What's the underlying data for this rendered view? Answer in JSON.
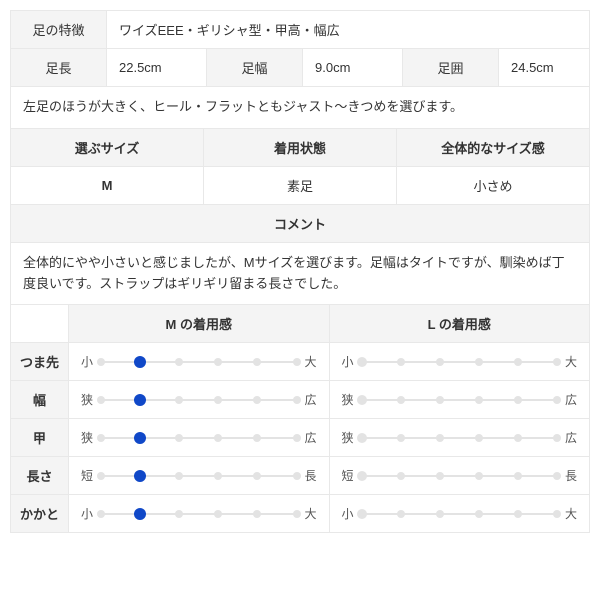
{
  "labels": {
    "foot_features": "足の特徴",
    "foot_length": "足長",
    "foot_width": "足幅",
    "foot_circ": "足囲",
    "size_choice": "選ぶサイズ",
    "wear_state": "着用状態",
    "overall_fit": "全体的なサイズ感",
    "comment": "コメント",
    "fit_m": "M の着用感",
    "fit_l": "L の着用感"
  },
  "values": {
    "foot_features": "ワイズEEE・ギリシャ型・甲高・幅広",
    "foot_length": "22.5cm",
    "foot_width": "9.0cm",
    "foot_circ": "24.5cm",
    "note": "左足のほうが大きく、ヒール・フラットともジャスト〜きつめを選びます。",
    "size_choice": "M",
    "wear_state": "素足",
    "overall_fit": "小さめ",
    "comment": "全体的にやや小さいと感じましたが、Mサイズを選びます。足幅はタイトですが、馴染めば丁度良いです。ストラップはギリギリ留まる長さでした。"
  },
  "rating": {
    "steps": 6,
    "colors": {
      "track": "#e3e3e3",
      "active": "#1048c8"
    },
    "rows": [
      {
        "label": "つま先",
        "lo": "小",
        "hi": "大",
        "m": 2,
        "l": null
      },
      {
        "label": "幅",
        "lo": "狭",
        "hi": "広",
        "m": 2,
        "l": null
      },
      {
        "label": "甲",
        "lo": "狭",
        "hi": "広",
        "m": 2,
        "l": null
      },
      {
        "label": "長さ",
        "lo": "短",
        "hi": "長",
        "m": 2,
        "l": null
      },
      {
        "label": "かかと",
        "lo": "小",
        "hi": "大",
        "m": 2,
        "l": null
      }
    ]
  }
}
